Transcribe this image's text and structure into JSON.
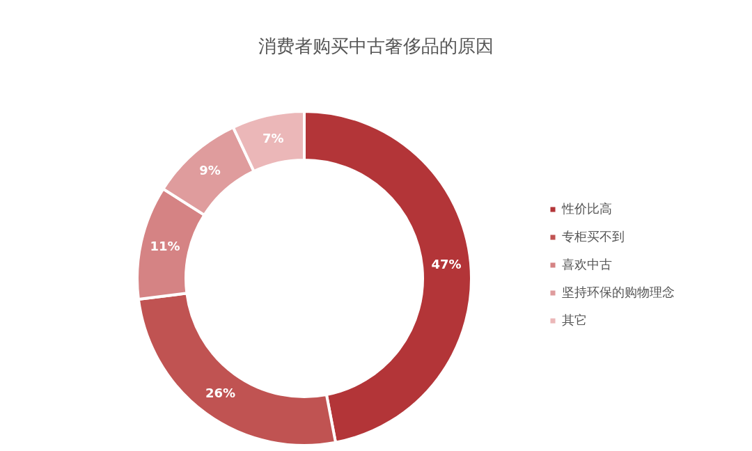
{
  "chart_data": {
    "type": "donut",
    "title": "消费者购买中古奢侈品的原因",
    "categories": [
      "性价比高",
      "专柜买不到",
      "喜欢中古",
      "坚持环保的购物理念",
      "其它"
    ],
    "values": [
      47,
      26,
      11,
      9,
      7
    ],
    "value_labels": [
      "47%",
      "26%",
      "11%",
      "9%",
      "7%"
    ],
    "colors": [
      "#b33538",
      "#c05352",
      "#d58384",
      "#df9c9d",
      "#ebb7b8"
    ],
    "legend": "right"
  }
}
